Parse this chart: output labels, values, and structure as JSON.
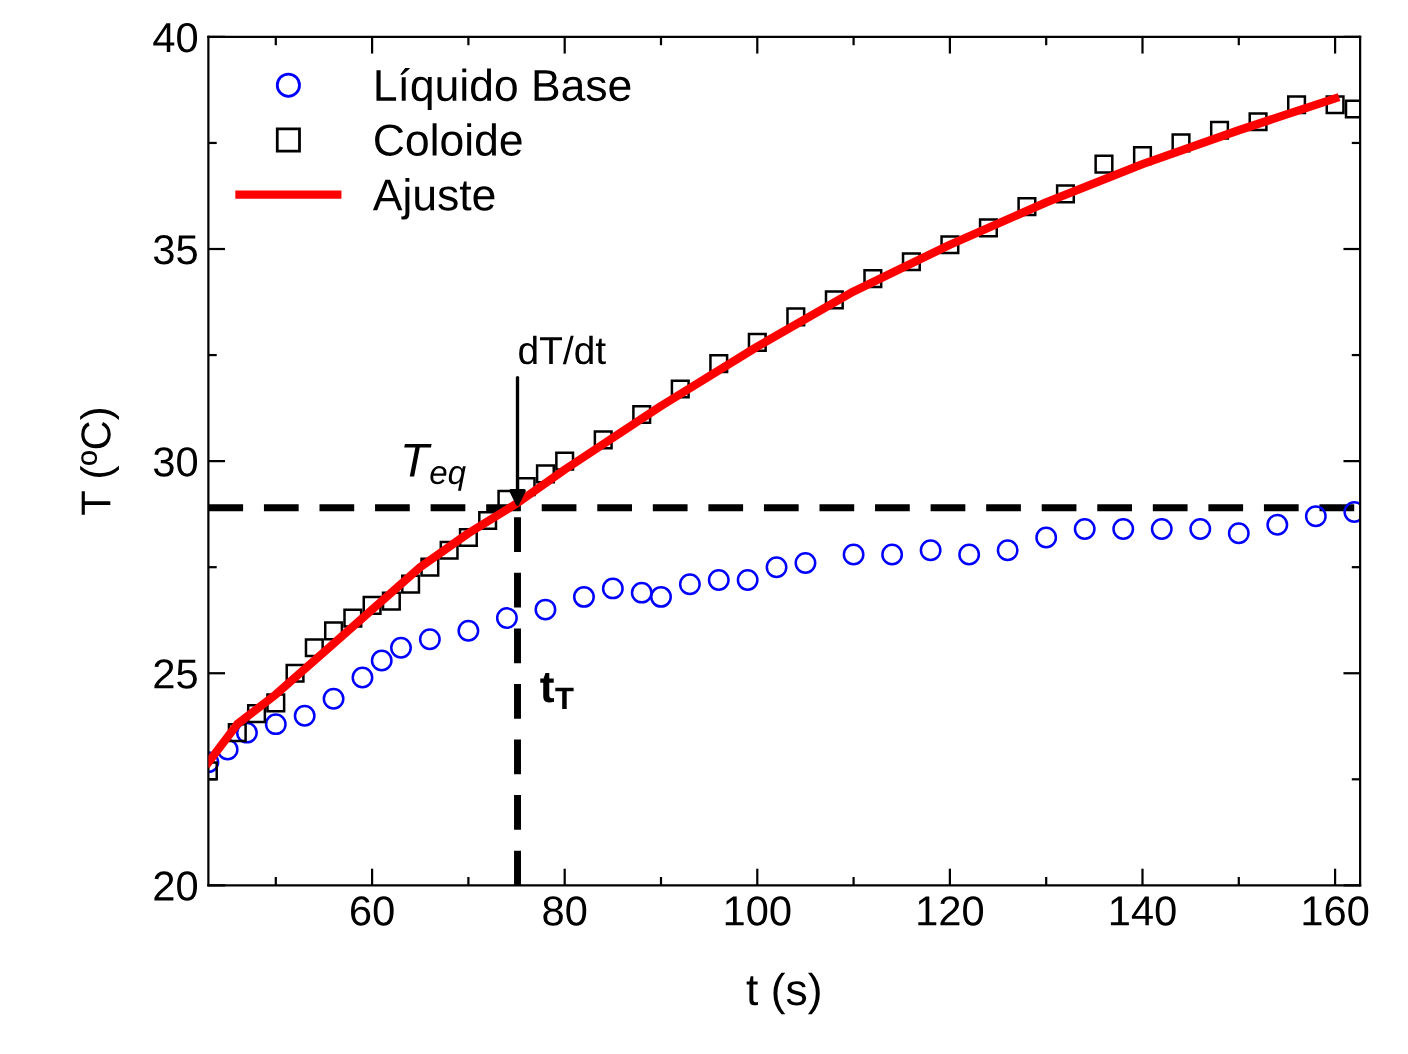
{
  "chart_data": {
    "type": "scatter",
    "xlabel": "t (s)",
    "ylabel": "T (ºC)",
    "xlim": [
      43,
      162.6
    ],
    "ylim": [
      20,
      40
    ],
    "xticks": [
      {
        "value": 50,
        "label": null
      },
      60,
      {
        "value": 70,
        "label": null
      },
      80,
      {
        "value": 90,
        "label": null
      },
      100,
      {
        "value": 110,
        "label": null
      },
      120,
      {
        "value": 130,
        "label": null
      },
      140,
      {
        "value": 150,
        "label": null
      },
      160
    ],
    "yticks": [
      20,
      {
        "value": 22.5,
        "label": null
      },
      25,
      {
        "value": 27.5,
        "label": null
      },
      30,
      {
        "value": 32.5,
        "label": null
      },
      35,
      {
        "value": 37.5,
        "label": null
      },
      40
    ],
    "grid": false,
    "legend": "top left",
    "series": [
      {
        "name": "Líquido Base",
        "marker": "circle",
        "color": "#0000ff",
        "x": [
          43,
          45,
          47,
          50,
          53,
          56,
          59,
          61,
          63,
          66,
          70,
          74,
          78,
          82,
          85,
          88,
          90,
          93,
          96,
          99,
          102,
          105,
          110,
          114,
          118,
          122,
          126,
          130,
          134,
          138,
          142,
          146,
          150,
          154,
          158,
          162
        ],
        "values": [
          22.9,
          23.2,
          23.6,
          23.8,
          24.0,
          24.4,
          24.9,
          25.3,
          25.6,
          25.8,
          26.0,
          26.3,
          26.5,
          26.8,
          27.0,
          26.9,
          26.8,
          27.1,
          27.2,
          27.2,
          27.5,
          27.6,
          27.8,
          27.8,
          27.9,
          27.8,
          27.9,
          28.2,
          28.4,
          28.4,
          28.4,
          28.4,
          28.3,
          28.5,
          28.7,
          28.8
        ]
      },
      {
        "name": "Coloide",
        "marker": "square",
        "color": "#000000",
        "x": [
          43,
          46,
          48,
          50,
          52,
          54,
          56,
          58,
          60,
          62,
          64,
          66,
          68,
          70,
          72,
          74,
          76,
          78,
          80,
          84,
          88,
          92,
          96,
          100,
          104,
          108,
          112,
          116,
          120,
          124,
          128,
          132,
          136,
          140,
          144,
          148,
          152,
          156,
          160,
          162
        ],
        "values": [
          22.7,
          23.6,
          24.05,
          24.3,
          25.0,
          25.6,
          26.0,
          26.3,
          26.6,
          26.7,
          27.1,
          27.5,
          27.9,
          28.2,
          28.6,
          29.1,
          29.4,
          29.7,
          30.0,
          30.5,
          31.1,
          31.7,
          32.3,
          32.8,
          33.4,
          33.8,
          34.3,
          34.7,
          35.1,
          35.5,
          36.0,
          36.3,
          37.0,
          37.2,
          37.5,
          37.8,
          38.0,
          38.4,
          38.4,
          38.3
        ]
      },
      {
        "name": "Ajuste",
        "type": "line",
        "line_style": "solid",
        "color": "#ff0000",
        "x": [
          43,
          46,
          50,
          55,
          60,
          65,
          70,
          75,
          80,
          90,
          100,
          110,
          120,
          130,
          140,
          150,
          160
        ],
        "values": [
          22.9,
          23.8,
          24.5,
          25.5,
          26.5,
          27.5,
          28.3,
          29.0,
          29.8,
          31.3,
          32.7,
          34.0,
          35.1,
          36.1,
          37.0,
          37.8,
          38.55
        ]
      }
    ],
    "ref_lines": [
      {
        "axis": "y",
        "value": 28.9,
        "color": "#000000",
        "line_style": "dashed"
      },
      {
        "axis": "x",
        "value": 75.1,
        "color": "#000000",
        "line_style": "dashed"
      }
    ],
    "annotations": [
      {
        "text": "dT/dt",
        "x": 75.1,
        "y": 28.9
      },
      "T$_{eq}$",
      "t$_{T}$"
    ]
  }
}
